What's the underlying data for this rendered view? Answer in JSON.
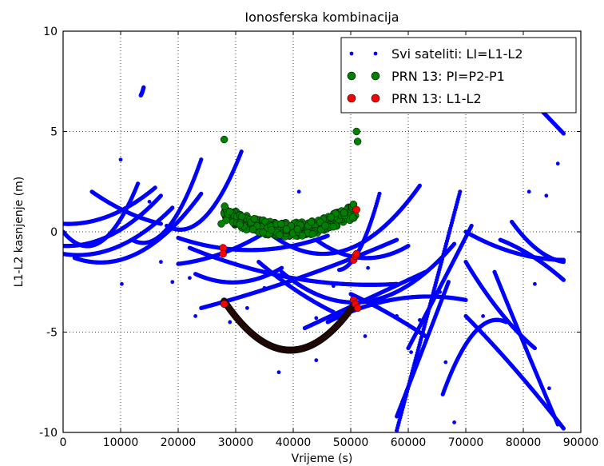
{
  "chart_data": {
    "type": "scatter",
    "title": "Ionosferska kombinacija",
    "xlabel": "Vrijeme (s)",
    "ylabel": "L1-L2 kasnjenje (m)",
    "xlim": [
      0,
      90000
    ],
    "ylim": [
      -10,
      10
    ],
    "xticks": [
      0,
      10000,
      20000,
      30000,
      40000,
      50000,
      60000,
      70000,
      80000,
      90000
    ],
    "yticks": [
      -10,
      -5,
      0,
      5,
      10
    ],
    "grid": true,
    "grid_style": "dotted",
    "legend_position": "top-right",
    "colors": {
      "blue": "#0000ff",
      "green": "#008000",
      "red": "#ff0000",
      "dark": "#2b0a05"
    },
    "series": [
      {
        "name": "Svi sateliti: LI=L1-L2",
        "color": "#0000ff",
        "marker": "small-dot",
        "arcs": [
          {
            "x0": 0,
            "x1": 6000,
            "x2": 16000,
            "y0": 0.4,
            "y1": 0.6,
            "y2": 2.2
          },
          {
            "x0": 0,
            "x1": 8000,
            "x2": 17000,
            "y0": -0.7,
            "y1": -0.2,
            "y2": 1.8
          },
          {
            "x0": 0,
            "x1": 7000,
            "x2": 13000,
            "y0": 0.0,
            "y1": -0.4,
            "y2": 2.4
          },
          {
            "x0": 0,
            "x1": 9000,
            "x2": 19000,
            "y0": -1.1,
            "y1": -0.8,
            "y2": 1.2
          },
          {
            "x0": 2000,
            "x1": 14000,
            "x2": 24000,
            "y0": -1.3,
            "y1": -0.9,
            "y2": 1.9
          },
          {
            "x0": 5000,
            "x1": 11000,
            "x2": 17000,
            "y0": 2.0,
            "y1": 1.0,
            "y2": 0.4
          },
          {
            "x0": 12000,
            "x1": 19000,
            "x2": 24000,
            "y0": -0.4,
            "y1": 0.5,
            "y2": 3.6
          },
          {
            "x0": 18000,
            "x1": 26000,
            "x2": 31000,
            "y0": 0.3,
            "y1": 1.2,
            "y2": 4.0
          },
          {
            "x0": 20000,
            "x1": 30000,
            "x2": 38000,
            "y0": -1.6,
            "y1": -0.8,
            "y2": 0.5
          },
          {
            "x0": 23000,
            "x1": 31000,
            "x2": 38000,
            "y0": -2.1,
            "y1": -2.5,
            "y2": -1.8
          },
          {
            "x0": 20000,
            "x1": 34000,
            "x2": 46000,
            "y0": -0.3,
            "y1": -0.9,
            "y2": -0.2
          },
          {
            "x0": 22000,
            "x1": 38000,
            "x2": 58000,
            "y0": -0.8,
            "y1": -2.2,
            "y2": -2.6
          },
          {
            "x0": 24000,
            "x1": 40000,
            "x2": 58000,
            "y0": -3.8,
            "y1": -2.4,
            "y2": -0.4
          },
          {
            "x0": 36000,
            "x1": 48000,
            "x2": 62000,
            "y0": -0.1,
            "y1": -1.0,
            "y2": 2.3
          },
          {
            "x0": 38000,
            "x1": 52000,
            "x2": 68000,
            "y0": -2.0,
            "y1": -3.5,
            "y2": -0.6
          },
          {
            "x0": 44000,
            "x1": 52000,
            "x2": 60000,
            "y0": -0.4,
            "y1": -1.3,
            "y2": -0.7
          },
          {
            "x0": 42000,
            "x1": 54000,
            "x2": 63000,
            "y0": -4.8,
            "y1": -3.2,
            "y2": -2.0
          },
          {
            "x0": 46000,
            "x1": 57000,
            "x2": 70000,
            "y0": -4.5,
            "y1": -3.4,
            "y2": -3.4
          },
          {
            "x0": 48000,
            "x1": 52000,
            "x2": 55000,
            "y0": -1.9,
            "y1": -0.6,
            "y2": 1.9
          },
          {
            "x0": 34000,
            "x1": 42000,
            "x2": 47000,
            "y0": -1.5,
            "y1": -3.2,
            "y2": -4.0
          },
          {
            "x0": 50000,
            "x1": 58000,
            "x2": 63000,
            "y0": -3.1,
            "y1": -4.3,
            "y2": -5.2
          },
          {
            "x0": 58000,
            "x1": 63000,
            "x2": 67000,
            "y0": -9.2,
            "y1": -5.5,
            "y2": -2.5
          },
          {
            "x0": 60000,
            "x1": 66000,
            "x2": 71000,
            "y0": -5.8,
            "y1": -2.5,
            "y2": 0.3
          },
          {
            "x0": 58000,
            "x1": 63000,
            "x2": 69000,
            "y0": -9.9,
            "y1": -4.5,
            "y2": 2.0
          },
          {
            "x0": 66000,
            "x1": 71000,
            "x2": 77000,
            "y0": -8.1,
            "y1": -5.2,
            "y2": -4.5
          },
          {
            "x0": 70000,
            "x1": 76000,
            "x2": 82000,
            "y0": -1.5,
            "y1": -4.0,
            "y2": -5.8
          },
          {
            "x0": 70000,
            "x1": 79000,
            "x2": 87000,
            "y0": -4.2,
            "y1": -7.0,
            "y2": -9.8
          },
          {
            "x0": 75000,
            "x1": 80000,
            "x2": 86000,
            "y0": -2.0,
            "y1": -5.5,
            "y2": -9.6
          },
          {
            "x0": 70000,
            "x1": 78000,
            "x2": 87000,
            "y0": 0.0,
            "y1": -1.0,
            "y2": -1.4
          },
          {
            "x0": 76000,
            "x1": 82000,
            "x2": 87000,
            "y0": -0.4,
            "y1": -1.3,
            "y2": -2.4
          },
          {
            "x0": 78000,
            "x1": 83000,
            "x2": 87000,
            "y0": 0.5,
            "y1": -1.0,
            "y2": -1.5
          },
          {
            "x0": 74000,
            "x1": 80000,
            "x2": 87000,
            "y0": 8.8,
            "y1": 7.0,
            "y2": 4.9
          },
          {
            "x0": 13500,
            "x1": 13800,
            "x2": 14000,
            "y0": 6.8,
            "y1": 7.0,
            "y2": 7.2
          }
        ],
        "scatter": [
          [
            10000,
            3.6
          ],
          [
            10200,
            -2.6
          ],
          [
            15000,
            1.5
          ],
          [
            17000,
            -1.5
          ],
          [
            19000,
            -2.5
          ],
          [
            22000,
            -2.3
          ],
          [
            23000,
            -4.2
          ],
          [
            29000,
            -4.5
          ],
          [
            32000,
            -3.8
          ],
          [
            35000,
            -2.8
          ],
          [
            37500,
            -7.0
          ],
          [
            41000,
            2.0
          ],
          [
            44000,
            -4.3
          ],
          [
            47000,
            -2.7
          ],
          [
            53000,
            -1.8
          ],
          [
            55000,
            -3.8
          ],
          [
            58000,
            -4.2
          ],
          [
            60500,
            -6.0
          ],
          [
            62000,
            -4.4
          ],
          [
            66500,
            -6.5
          ],
          [
            68000,
            -9.5
          ],
          [
            73000,
            -4.2
          ],
          [
            81000,
            2.0
          ],
          [
            84000,
            1.8
          ],
          [
            86000,
            3.4
          ],
          [
            82000,
            -2.6
          ],
          [
            84500,
            -7.8
          ],
          [
            52500,
            -5.2
          ],
          [
            44000,
            -6.4
          ],
          [
            65500,
            -3.0
          ]
        ]
      },
      {
        "name": "PRN 13: PI=P2-P1",
        "color": "#008000",
        "marker": "circle",
        "u_curve": {
          "xstart": 28000,
          "xend": 51000,
          "xmin": 39000,
          "ymin": 0.0,
          "k": 7e-09,
          "noise": 0.7
        },
        "extra": [
          [
            27500,
            0.4
          ],
          [
            51000,
            5.0
          ],
          [
            51200,
            4.5
          ],
          [
            28000,
            4.6
          ]
        ]
      },
      {
        "name": "PRN 13: L1-L2",
        "color": "#ff0000",
        "marker": "circle",
        "points": [
          [
            27800,
            -0.8
          ],
          [
            27800,
            -1.1
          ],
          [
            28000,
            -3.6
          ],
          [
            50500,
            -1.4
          ],
          [
            50800,
            -1.2
          ],
          [
            51000,
            -1.1
          ],
          [
            51000,
            1.1
          ],
          [
            50500,
            -3.4
          ],
          [
            50800,
            -3.6
          ],
          [
            51200,
            -3.8
          ]
        ],
        "dark_arc": {
          "xstart": 28000,
          "xend": 50500,
          "xmin": 39500,
          "ymin": -5.9,
          "k": 1.85e-08
        }
      }
    ]
  }
}
